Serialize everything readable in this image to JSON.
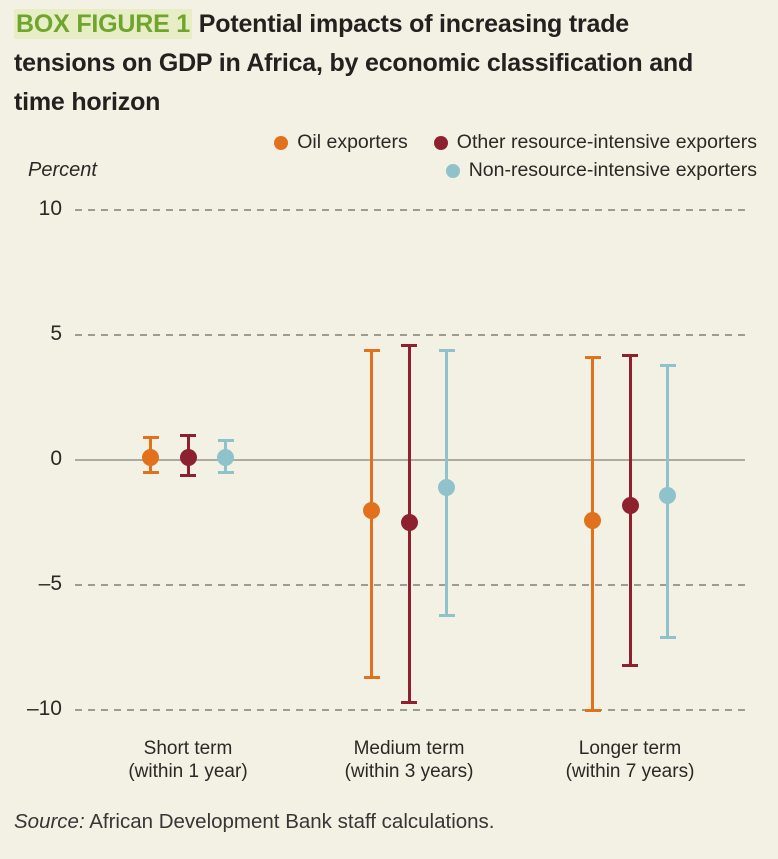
{
  "title": {
    "tag": "BOX FIGURE 1",
    "text": " Potential impacts of increasing trade tensions on GDP in Africa, by economic classification and time horizon"
  },
  "source": {
    "prefix": "Source:",
    "text": " African Development Bank staff calculations."
  },
  "colors": {
    "background": "#F2F1E3",
    "figure_number_green": "#6FA52D",
    "oil_exporters": "#E2711D",
    "other_resource_intensive": "#8E2130",
    "non_resource_intensive": "#8FC2CB",
    "gridline": "#9E9C92",
    "zero_line": "#ADABA1"
  },
  "chart_data": {
    "type": "scatter",
    "subtype": "dot-plot-with-error-bars",
    "title": "Potential impacts of increasing trade tensions on GDP in Africa, by economic classification and time horizon",
    "xlabel": "",
    "ylabel": "Percent",
    "ylim": [
      -10,
      10
    ],
    "yticks": [
      10,
      5,
      0,
      -5,
      -10
    ],
    "ytick_labels": [
      "10",
      "5",
      "0",
      "–5",
      "–10"
    ],
    "grid": "horizontal dashed, solid line at 0",
    "legend_position": "top-right, two rows",
    "categories": [
      {
        "label": "Short term",
        "sub": "(within 1 year)"
      },
      {
        "label": "Medium term",
        "sub": "(within 3 years)"
      },
      {
        "label": "Longer term",
        "sub": "(within 7 years)"
      }
    ],
    "series": [
      {
        "name": "Oil exporters",
        "color": "#E2711D",
        "points": [
          {
            "value": 0.1,
            "hi": 0.9,
            "lo": -0.5
          },
          {
            "value": -2.0,
            "hi": 4.4,
            "lo": -8.7
          },
          {
            "value": -2.4,
            "hi": 4.1,
            "lo": -10.0
          }
        ]
      },
      {
        "name": "Other resource-intensive exporters",
        "color": "#8E2130",
        "points": [
          {
            "value": 0.1,
            "hi": 1.0,
            "lo": -0.6
          },
          {
            "value": -2.5,
            "hi": 4.6,
            "lo": -9.7
          },
          {
            "value": -1.8,
            "hi": 4.2,
            "lo": -8.2
          }
        ]
      },
      {
        "name": "Non-resource-intensive exporters",
        "color": "#8FC2CB",
        "points": [
          {
            "value": 0.1,
            "hi": 0.8,
            "lo": -0.5
          },
          {
            "value": -1.1,
            "hi": 4.4,
            "lo": -6.2
          },
          {
            "value": -1.4,
            "hi": 3.8,
            "lo": -7.1
          }
        ]
      }
    ]
  }
}
